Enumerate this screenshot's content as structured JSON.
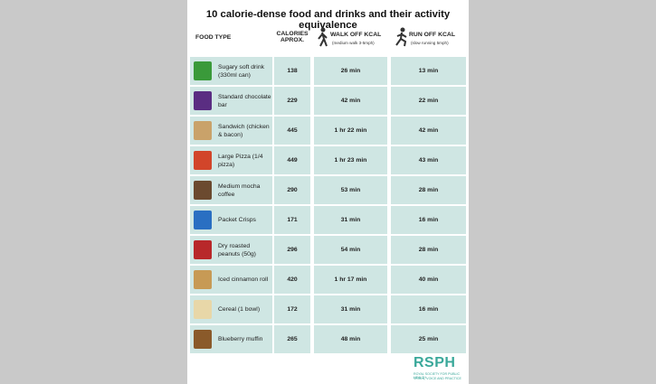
{
  "title": "10 calorie-dense food and drinks and their activity equivalence",
  "table": {
    "header": {
      "food": "FOOD TYPE",
      "calories": "CALORIES APROX.",
      "walk": "WALK OFF KCAL",
      "walk_note": "(medium walk 3-5mph)",
      "run": "RUN OFF KCAL",
      "run_note": "(slow running 5mph)"
    },
    "rows": [
      [
        "Sugary soft drink (330ml can)",
        138,
        "26 min",
        "13 min"
      ],
      [
        "Standard chocolate bar",
        229,
        "42 min",
        "22 min"
      ],
      [
        "Sandwich (chicken & bacon)",
        445,
        "1 hr 22 min",
        "42 min"
      ],
      [
        "Large Pizza (1/4 pizza)",
        449,
        "1 hr 23 min",
        "43 min"
      ],
      [
        "Medium mocha coffee",
        290,
        "53 min",
        "28 min"
      ],
      [
        "Packet Crisps",
        171,
        "31 min",
        "16 min"
      ],
      [
        "Dry roasted peanuts (50g)",
        296,
        "54 min",
        "28 min"
      ],
      [
        "Iced cinnamon roll",
        420,
        "1 hr 17 min",
        "40 min"
      ],
      [
        "Cereal (1 bowl)",
        172,
        "31 min",
        "16 min"
      ],
      [
        "Blueberry muffin",
        265,
        "48 min",
        "25 min"
      ]
    ]
  },
  "logo": {
    "name": "RSPH",
    "line1": "ROYAL SOCIETY FOR PUBLIC HEALTH",
    "line2": "VISION, VOICE AND PRACTICE"
  }
}
